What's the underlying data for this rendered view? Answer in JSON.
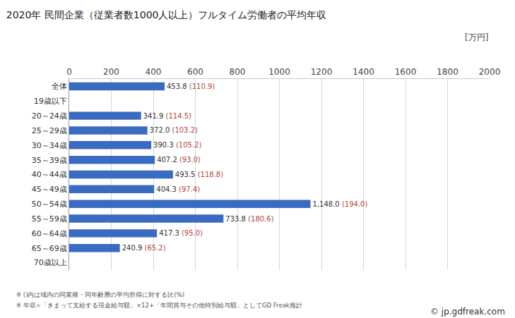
{
  "chart_data": {
    "type": "bar",
    "orientation": "horizontal",
    "title": "2020年 民間企業（従業者数1000人以上）フルタイム労働者の平均年収",
    "unit_label": "[万円]",
    "categories": [
      "全体",
      "19歳以下",
      "20～24歳",
      "25～29歳",
      "30～34歳",
      "35～39歳",
      "40～44歳",
      "45～49歳",
      "50～54歳",
      "55～59歳",
      "60～64歳",
      "65～69歳",
      "70歳以上"
    ],
    "values": [
      453.8,
      null,
      341.9,
      372.0,
      390.3,
      407.2,
      493.5,
      404.3,
      1148.0,
      733.8,
      417.3,
      240.9,
      null
    ],
    "value_labels": [
      "453.8",
      null,
      "341.9",
      "372.0",
      "390.3",
      "407.2",
      "493.5",
      "404.3",
      "1,148.0",
      "733.8",
      "417.3",
      "240.9",
      null
    ],
    "ratio_labels": [
      "(110.9)",
      null,
      "(114.5)",
      "(103.2)",
      "(105.2)",
      "(93.0)",
      "(118.8)",
      "(97.4)",
      "(194.0)",
      "(180.6)",
      "(95.0)",
      "(65.2)",
      null
    ],
    "color": "#3a6bc2",
    "xlim": [
      0,
      2000
    ],
    "xticks": [
      0,
      200,
      400,
      600,
      800,
      1000,
      1200,
      1400,
      1600,
      1800,
      2000
    ],
    "grid": true,
    "data_labels": true,
    "notes": [
      "※ ()内は域内の同業種・同年齢層の平均所得に対する比(%)",
      "※ 年収=「きまって支給する現金給与額」×12+「年間賞与その他特別給与額」としてGD Freak推計"
    ],
    "source": "© jp.gdfreak.com"
  }
}
